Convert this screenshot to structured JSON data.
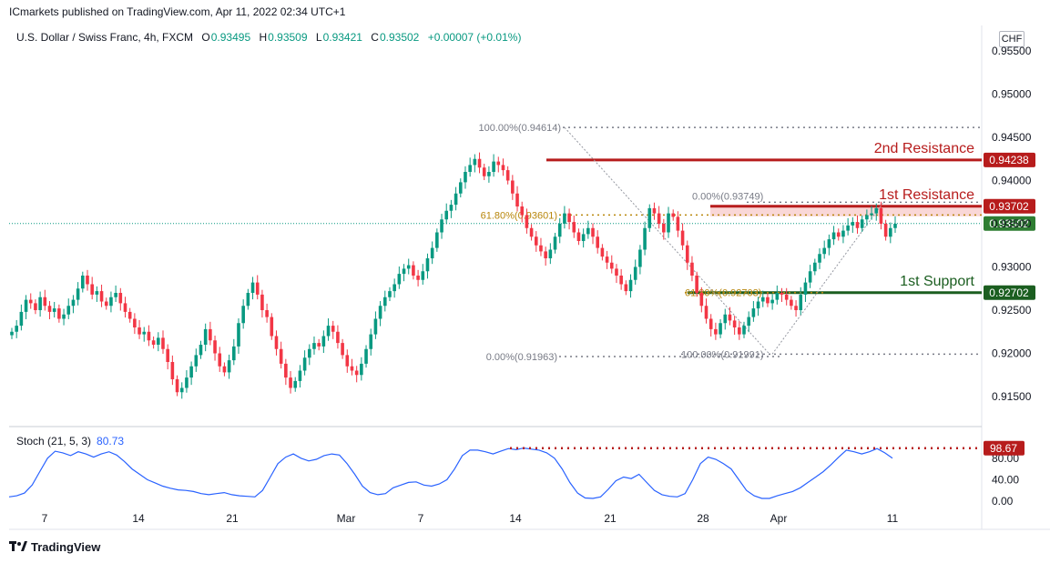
{
  "header": {
    "published": "ICmarkets published on TradingView.com, Apr 11, 2022 02:34 UTC+1",
    "symbol": "U.S. Dollar / Swiss Franc, 4h, FXCM",
    "o_label": "O",
    "o": "0.93495",
    "h_label": "H",
    "h": "0.93509",
    "l_label": "L",
    "l": "0.93421",
    "c_label": "C",
    "c": "0.93502",
    "change": "+0.00007 (+0.01%)",
    "currency": "CHF"
  },
  "footer": {
    "brand": "TradingView"
  },
  "colors": {
    "up": "#089981",
    "down": "#f23645",
    "resistance": "#b71c1c",
    "support": "#1b5e20",
    "stoch": "#2962ff",
    "fib": "#b8860b"
  },
  "chart_data": [
    {
      "type": "candlestick",
      "title": "U.S. Dollar / Swiss Franc, 4h, FXCM",
      "y_ticks": [
        "0.95500",
        "0.95000",
        "0.94500",
        "0.94000",
        "0.93500",
        "0.93000",
        "0.92500",
        "0.92000",
        "0.91500"
      ],
      "ylim": [
        0.915,
        0.955
      ],
      "x_ticks": [
        "7",
        "14",
        "21",
        "Mar",
        "7",
        "14",
        "21",
        "28",
        "Apr",
        "11"
      ],
      "price_tags": [
        {
          "name": "2nd Resistance",
          "value": "0.94238",
          "color": "#b71c1c"
        },
        {
          "name": "1st Resistance",
          "value": "0.93702",
          "color": "#b71c1c"
        },
        {
          "name": "last",
          "value": "0.93502",
          "color": "#2e7d32"
        },
        {
          "name": "1st Support",
          "value": "0.92702",
          "color": "#1b5e20"
        }
      ],
      "levels": [
        {
          "label": "2nd Resistance",
          "value": 0.94238
        },
        {
          "label": "1st Resistance",
          "value": 0.93702
        },
        {
          "label": "1st Support",
          "value": 0.92702
        }
      ],
      "fib_labels": [
        {
          "text": "100.00%(0.94614)",
          "value": 0.94614
        },
        {
          "text": "61.80%(0.93601)",
          "value": 0.93601
        },
        {
          "text": "0.00%(0.91963)",
          "value": 0.91963
        },
        {
          "text": "0.00%(0.93749)",
          "value": 0.93749
        },
        {
          "text": "61.80%(0.92703)",
          "value": 0.92703
        },
        {
          "text": "100.00%(0.91991)",
          "value": 0.91991
        }
      ],
      "close_series": [
        0.9225,
        0.9232,
        0.9248,
        0.9262,
        0.9258,
        0.925,
        0.9265,
        0.9255,
        0.9248,
        0.9252,
        0.924,
        0.9245,
        0.9255,
        0.9262,
        0.9275,
        0.929,
        0.928,
        0.9268,
        0.9272,
        0.926,
        0.9255,
        0.9265,
        0.927,
        0.9258,
        0.9248,
        0.924,
        0.923,
        0.9222,
        0.9225,
        0.9215,
        0.921,
        0.9218,
        0.9205,
        0.919,
        0.917,
        0.9155,
        0.916,
        0.9172,
        0.9185,
        0.9198,
        0.921,
        0.9228,
        0.9215,
        0.92,
        0.9185,
        0.9178,
        0.9192,
        0.9208,
        0.9235,
        0.9255,
        0.927,
        0.9282,
        0.9268,
        0.925,
        0.9242,
        0.922,
        0.9205,
        0.9188,
        0.9172,
        0.916,
        0.9168,
        0.918,
        0.9195,
        0.9205,
        0.9212,
        0.9208,
        0.922,
        0.9232,
        0.9225,
        0.9212,
        0.9198,
        0.9185,
        0.918,
        0.9175,
        0.9188,
        0.9205,
        0.9222,
        0.924,
        0.9255,
        0.9265,
        0.9272,
        0.928,
        0.9292,
        0.9298,
        0.9302,
        0.929,
        0.9285,
        0.9295,
        0.931,
        0.9322,
        0.934,
        0.9355,
        0.9365,
        0.9372,
        0.9385,
        0.9398,
        0.941,
        0.9418,
        0.9425,
        0.9415,
        0.9405,
        0.941,
        0.9422,
        0.9418,
        0.9412,
        0.94,
        0.9385,
        0.937,
        0.936,
        0.9345,
        0.9335,
        0.9325,
        0.9318,
        0.931,
        0.932,
        0.9335,
        0.935,
        0.9362,
        0.9352,
        0.934,
        0.933,
        0.9338,
        0.9345,
        0.9335,
        0.9322,
        0.9312,
        0.9305,
        0.9298,
        0.929,
        0.928,
        0.9272,
        0.9285,
        0.93,
        0.932,
        0.9345,
        0.9368,
        0.9362,
        0.935,
        0.934,
        0.9362,
        0.9358,
        0.9342,
        0.9325,
        0.9305,
        0.929,
        0.927,
        0.9255,
        0.924,
        0.9228,
        0.9222,
        0.9235,
        0.9245,
        0.9238,
        0.923,
        0.9222,
        0.9232,
        0.9242,
        0.9252,
        0.926,
        0.9265,
        0.9258,
        0.9262,
        0.927,
        0.9268,
        0.9262,
        0.9255,
        0.925,
        0.9268,
        0.9282,
        0.9295,
        0.9305,
        0.9315,
        0.9322,
        0.9332,
        0.934,
        0.9335,
        0.9342,
        0.9348,
        0.9352,
        0.9345,
        0.9355,
        0.936,
        0.9362,
        0.9368,
        0.935,
        0.9335,
        0.9345,
        0.935
      ]
    },
    {
      "type": "line",
      "title": "Stoch (21, 5, 3)",
      "series": [
        {
          "name": "Stoch (21, 5, 3)",
          "last": "80.73"
        }
      ],
      "y_ticks": [
        "80.00",
        "40.00",
        "0.00"
      ],
      "ylim": [
        0,
        100
      ],
      "overbought_tag": "98.67",
      "values": [
        8,
        10,
        15,
        30,
        55,
        80,
        93,
        90,
        85,
        92,
        88,
        82,
        88,
        92,
        86,
        74,
        60,
        50,
        40,
        34,
        28,
        24,
        21,
        20,
        18,
        14,
        12,
        14,
        16,
        12,
        10,
        9,
        8,
        20,
        45,
        70,
        82,
        88,
        80,
        75,
        78,
        85,
        88,
        86,
        70,
        50,
        28,
        16,
        12,
        14,
        25,
        30,
        35,
        36,
        30,
        28,
        32,
        40,
        60,
        85,
        95,
        95,
        92,
        88,
        93,
        98,
        96,
        99,
        97,
        95,
        90,
        80,
        60,
        35,
        15,
        6,
        5,
        8,
        22,
        38,
        45,
        42,
        50,
        35,
        20,
        12,
        9,
        8,
        14,
        40,
        70,
        82,
        78,
        70,
        60,
        40,
        20,
        10,
        5,
        5,
        10,
        14,
        18,
        25,
        35,
        45,
        55,
        68,
        82,
        95,
        92,
        88,
        92,
        98,
        90,
        80
      ]
    }
  ]
}
